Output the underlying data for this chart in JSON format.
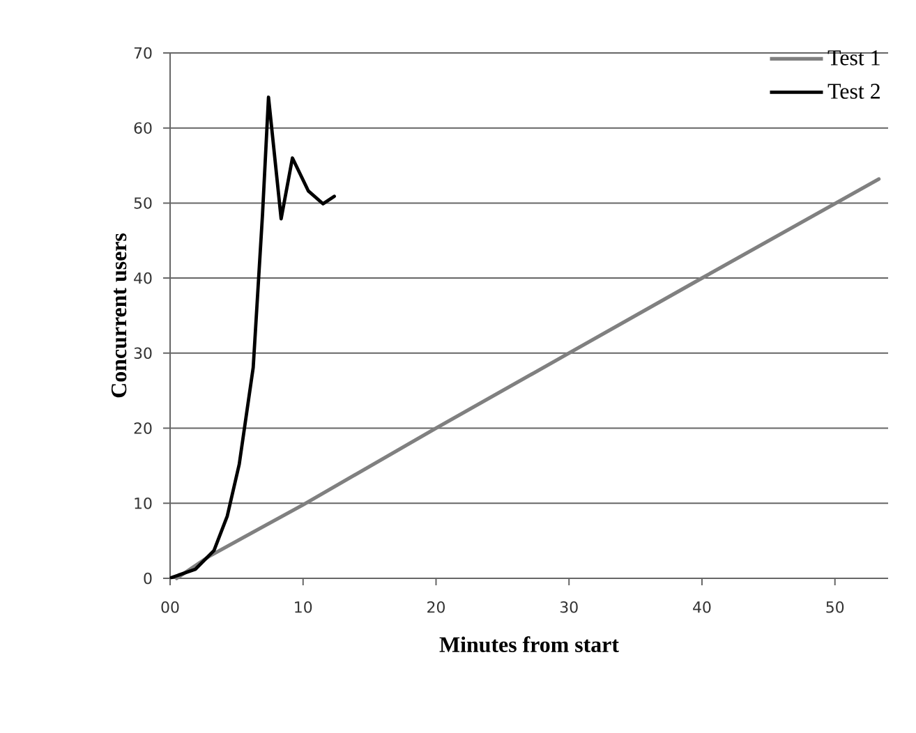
{
  "chart_data": {
    "type": "line",
    "xlabel": "Minutes from start",
    "ylabel": "Concurrent users",
    "xlim": [
      0,
      54
    ],
    "ylim": [
      0,
      70
    ],
    "xticks": [
      {
        "value": 0,
        "label": "00"
      },
      10,
      20,
      30,
      40,
      50
    ],
    "yticks": [
      0,
      10,
      20,
      30,
      40,
      50,
      60,
      70
    ],
    "grid": "y",
    "legend": "top right",
    "marker": "none",
    "line_style": "solid",
    "series": [
      {
        "name": "Test 1",
        "color": "#808080",
        "x": [
          0.5,
          3,
          10,
          20,
          30,
          40,
          53.3
        ],
        "values": [
          0,
          3,
          9.8,
          20,
          30,
          40,
          53.2
        ]
      },
      {
        "name": "Test 2",
        "color": "#000000",
        "x": [
          0.1,
          1.9,
          3.3,
          4.3,
          5.2,
          5.9,
          6.25,
          6.95,
          7.4,
          8.35,
          9.2,
          10.4,
          11.5,
          12.35
        ],
        "values": [
          0.1,
          1.2,
          3.7,
          8.3,
          15.2,
          23.8,
          28.1,
          48.5,
          64.1,
          47.9,
          56,
          51.6,
          49.9,
          50.9
        ]
      }
    ]
  }
}
